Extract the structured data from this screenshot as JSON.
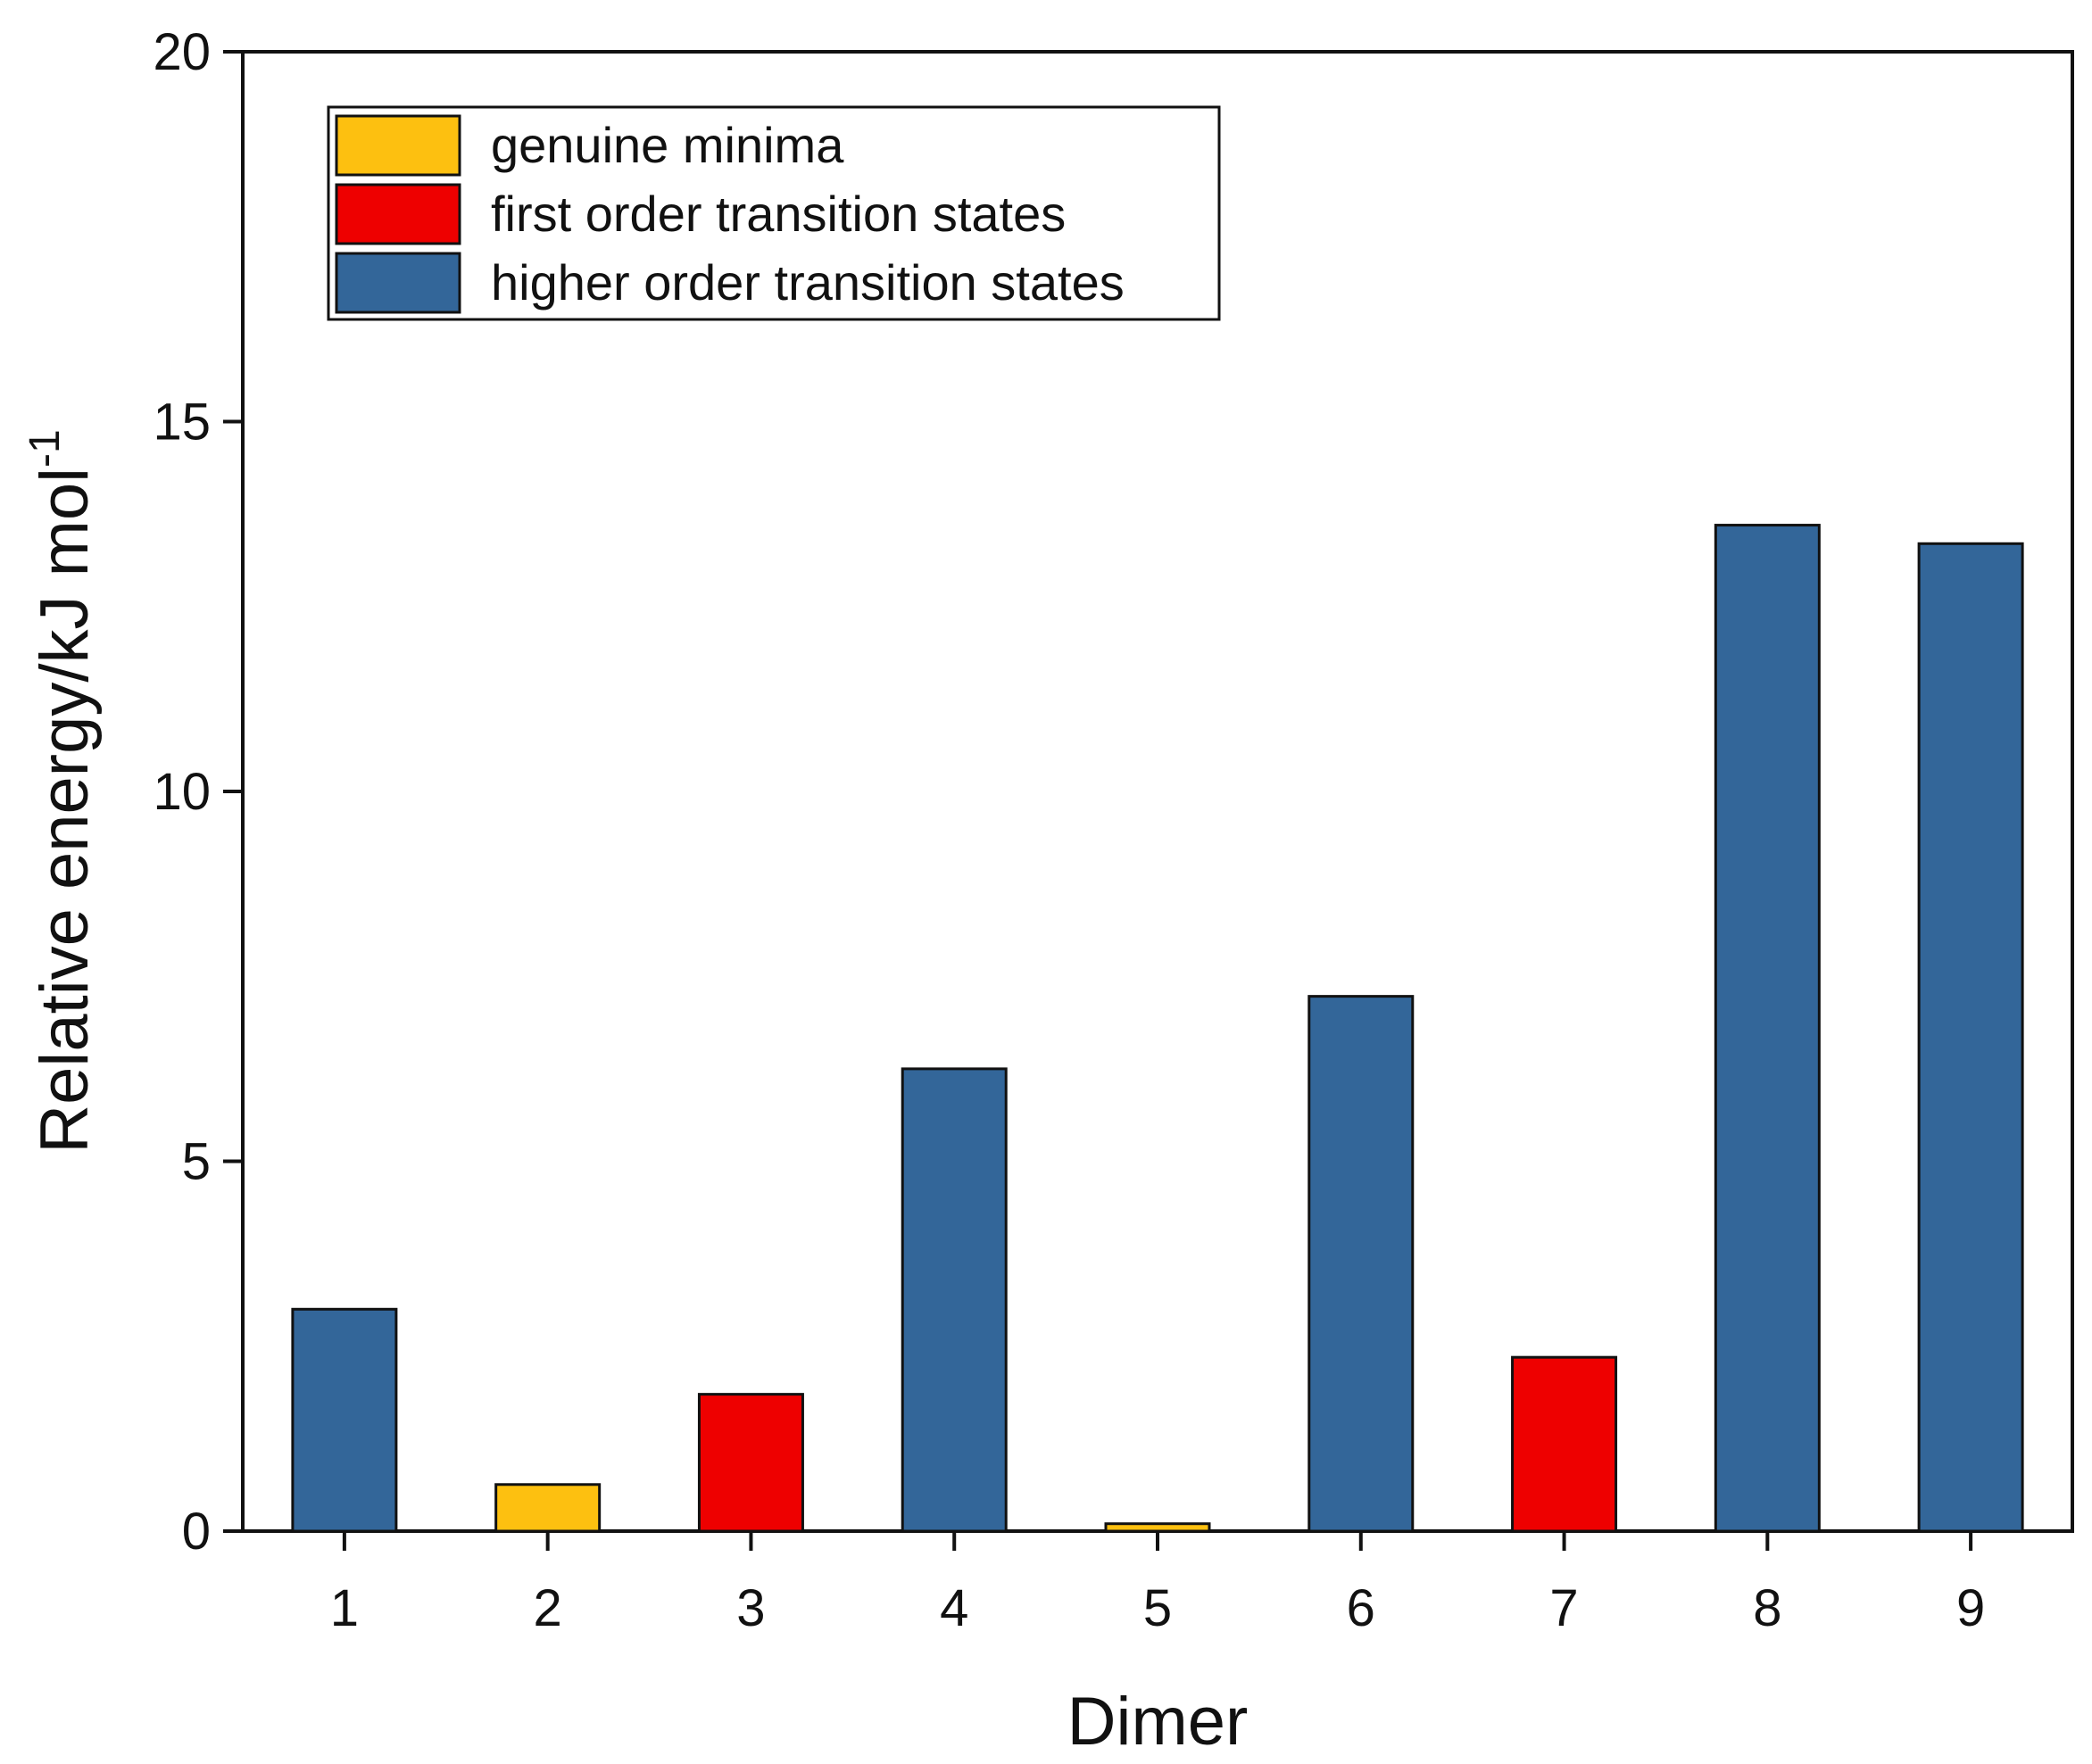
{
  "chart_data": {
    "type": "bar",
    "title": "",
    "xlabel": "Dimer",
    "ylabel": {
      "base": "Relative energy/kJ mol",
      "superscript": "-1"
    },
    "ylim": [
      0,
      20
    ],
    "yticks": [
      "0",
      "5",
      "10",
      "15",
      "20"
    ],
    "categories": [
      "1",
      "2",
      "3",
      "4",
      "5",
      "6",
      "7",
      "8",
      "9"
    ],
    "values": [
      3.0,
      0.63,
      1.85,
      6.25,
      0.1,
      7.23,
      2.35,
      13.6,
      13.35
    ],
    "groups": [
      "higher",
      "minima",
      "first",
      "higher",
      "minima",
      "higher",
      "first",
      "higher",
      "higher"
    ],
    "legend": {
      "position": "top-left",
      "entries": [
        {
          "key": "minima",
          "label": "genuine minima",
          "color": "#FDC010"
        },
        {
          "key": "first",
          "label": "first order transition states",
          "color": "#EE0000"
        },
        {
          "key": "higher",
          "label": "higher order transition states",
          "color": "#336699"
        }
      ]
    },
    "grid": false
  }
}
